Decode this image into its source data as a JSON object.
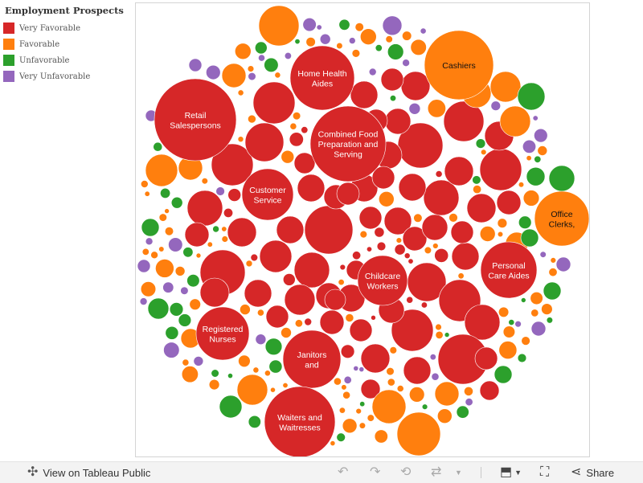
{
  "legend": {
    "title": "Employment Prospects",
    "items": [
      {
        "label": "Very Favorable",
        "color": "#d62728"
      },
      {
        "label": "Favorable",
        "color": "#ff7f0e"
      },
      {
        "label": "Unfavorable",
        "color": "#2ca02c"
      },
      {
        "label": "Very Unfavorable",
        "color": "#9467bd"
      }
    ]
  },
  "chart_data": {
    "type": "packed-bubble",
    "labeled_bubbles": [
      {
        "name": "Retail Salespersons",
        "category": "Very Favorable"
      },
      {
        "name": "Combined Food Preparation and Serving",
        "category": "Very Favorable"
      },
      {
        "name": "Home Health Aides",
        "category": "Very Favorable"
      },
      {
        "name": "Customer Service",
        "category": "Very Favorable"
      },
      {
        "name": "Childcare Workers",
        "category": "Very Favorable"
      },
      {
        "name": "Personal Care Aides",
        "category": "Very Favorable"
      },
      {
        "name": "Registered Nurses",
        "category": "Very Favorable"
      },
      {
        "name": "Janitors and",
        "category": "Very Favorable"
      },
      {
        "name": "Waiters and Waitresses",
        "category": "Very Favorable"
      },
      {
        "name": "Cashiers",
        "category": "Favorable"
      },
      {
        "name": "Office Clerks,",
        "category": "Favorable"
      }
    ]
  },
  "toolbar": {
    "view_label": "View on Tableau Public",
    "share_label": "Share"
  }
}
